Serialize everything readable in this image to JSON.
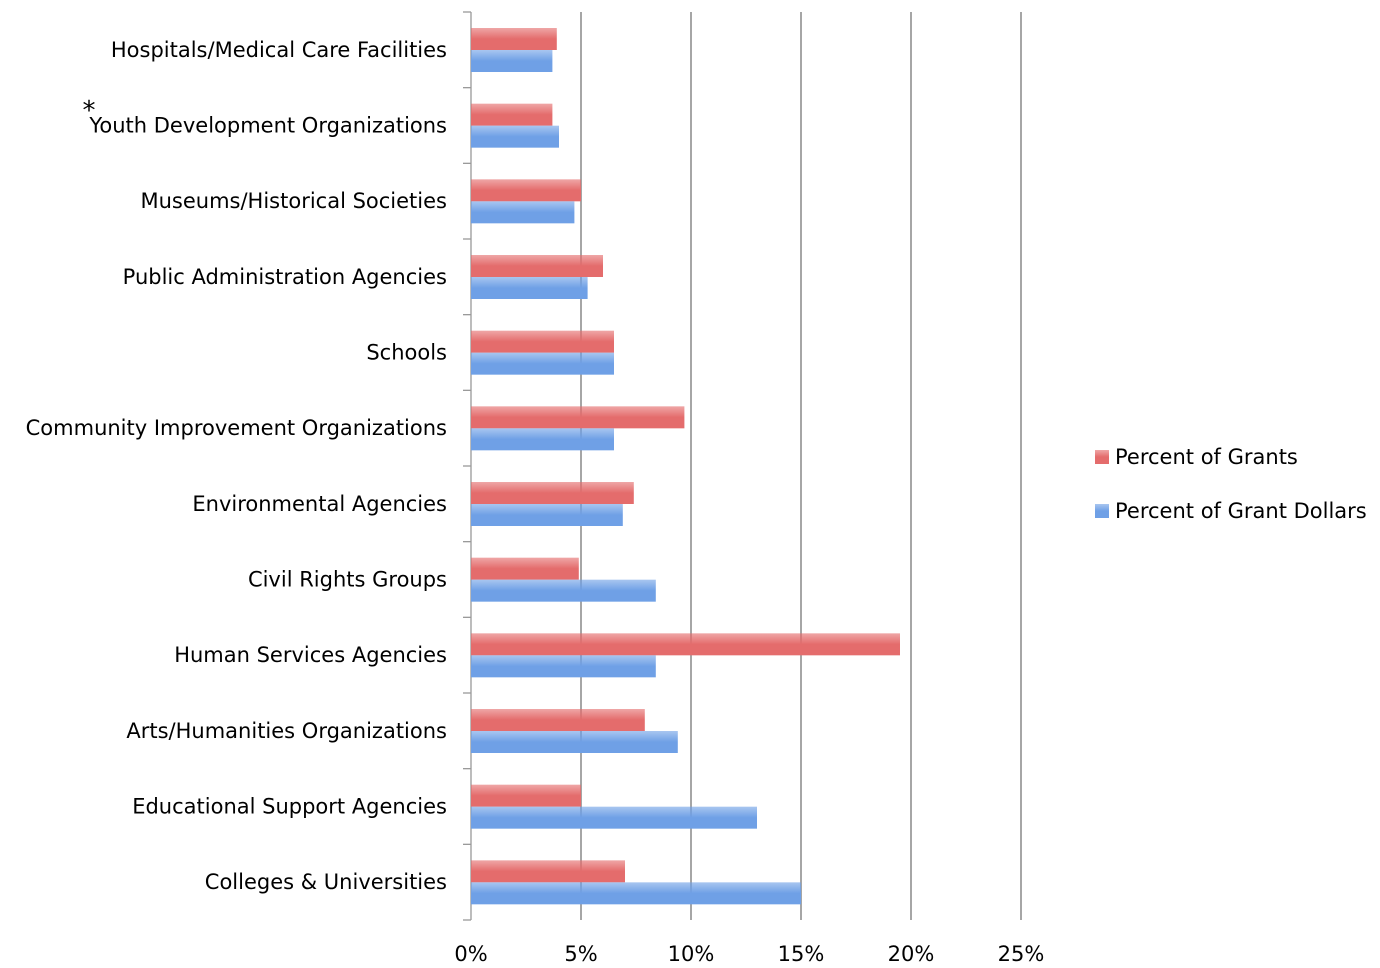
{
  "chart_data": {
    "type": "hbar",
    "categories": [
      "Hospitals/Medical Care Facilities",
      "Youth Development Organizations",
      "Museums/Historical Societies",
      "Public Administration Agencies",
      "Schools",
      "Community Improvement Organizations",
      "Environmental Agencies",
      "Civil Rights Groups",
      "Human Services Agencies",
      "Arts/Humanities Organizations",
      "Educational Support Agencies",
      "Colleges & Universities"
    ],
    "series": [
      {
        "name": "Percent of Grants",
        "color": "#e46c6c",
        "values": [
          3.9,
          3.7,
          5.0,
          6.0,
          6.5,
          9.7,
          7.4,
          4.9,
          19.5,
          7.9,
          5.0,
          7.0
        ]
      },
      {
        "name": "Percent of Grant Dollars",
        "color": "#6fa0e6",
        "values": [
          3.7,
          4.0,
          4.7,
          5.3,
          6.5,
          6.5,
          6.9,
          8.4,
          8.4,
          9.4,
          13.0,
          15.0
        ]
      }
    ],
    "xlim": [
      0,
      25
    ],
    "xticks": [
      {
        "value": 0,
        "label": "0%"
      },
      {
        "value": 5,
        "label": "5%"
      },
      {
        "value": 10,
        "label": "10%"
      },
      {
        "value": 15,
        "label": "15%"
      },
      {
        "value": 20,
        "label": "20%"
      },
      {
        "value": 25,
        "label": "25%"
      }
    ],
    "grid": true,
    "legend": "right",
    "annotations": [
      "*"
    ]
  }
}
